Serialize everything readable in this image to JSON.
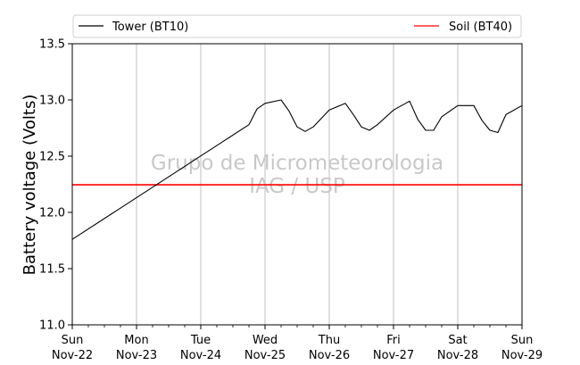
{
  "chart_data": {
    "type": "line",
    "ylabel": "Battery voltage (Volts)",
    "ylim": [
      11.0,
      13.5
    ],
    "yticks": [
      "11.0",
      "11.5",
      "12.0",
      "12.5",
      "13.0",
      "13.5"
    ],
    "xlim": [
      "2020-11-22",
      "2020-11-29"
    ],
    "xticks": [
      {
        "day": "Sun",
        "date": "Nov-22"
      },
      {
        "day": "Mon",
        "date": "Nov-23"
      },
      {
        "day": "Tue",
        "date": "Nov-24"
      },
      {
        "day": "Wed",
        "date": "Nov-25"
      },
      {
        "day": "Thu",
        "date": "Nov-26"
      },
      {
        "day": "Fri",
        "date": "Nov-27"
      },
      {
        "day": "Sat",
        "date": "Nov-28"
      },
      {
        "day": "Sun",
        "date": "Nov-29"
      }
    ],
    "grid": "vertical",
    "legend": "top",
    "watermark": [
      "Grupo de Micrometeorologia",
      "IAG / USP"
    ],
    "series": [
      {
        "name": "Tower (BT10)",
        "color": "#000000",
        "x": [
          "2020-11-22 00:00",
          "2020-11-24 18:00",
          "2020-11-24 21:00",
          "2020-11-25 00:00",
          "2020-11-25 06:00",
          "2020-11-25 09:00",
          "2020-11-25 12:00",
          "2020-11-25 15:00",
          "2020-11-25 18:00",
          "2020-11-26 00:00",
          "2020-11-26 06:00",
          "2020-11-26 09:00",
          "2020-11-26 12:00",
          "2020-11-26 15:00",
          "2020-11-26 18:00",
          "2020-11-27 00:00",
          "2020-11-27 06:00",
          "2020-11-27 09:00",
          "2020-11-27 12:00",
          "2020-11-27 15:00",
          "2020-11-27 18:00",
          "2020-11-28 00:00",
          "2020-11-28 06:00",
          "2020-11-28 09:00",
          "2020-11-28 12:00",
          "2020-11-28 15:00",
          "2020-11-28 18:00",
          "2020-11-29 00:00"
        ],
        "y": [
          11.76,
          12.78,
          12.92,
          12.97,
          13.0,
          12.9,
          12.76,
          12.72,
          12.76,
          12.91,
          12.97,
          12.87,
          12.76,
          12.73,
          12.78,
          12.91,
          12.99,
          12.83,
          12.73,
          12.73,
          12.85,
          12.95,
          12.95,
          12.82,
          12.73,
          12.71,
          12.87,
          12.95
        ]
      },
      {
        "name": "Soil (BT40)",
        "color": "#ff0000",
        "x": [
          "2020-11-22 00:00",
          "2020-11-29 00:00"
        ],
        "y": [
          12.245,
          12.245
        ]
      }
    ]
  }
}
